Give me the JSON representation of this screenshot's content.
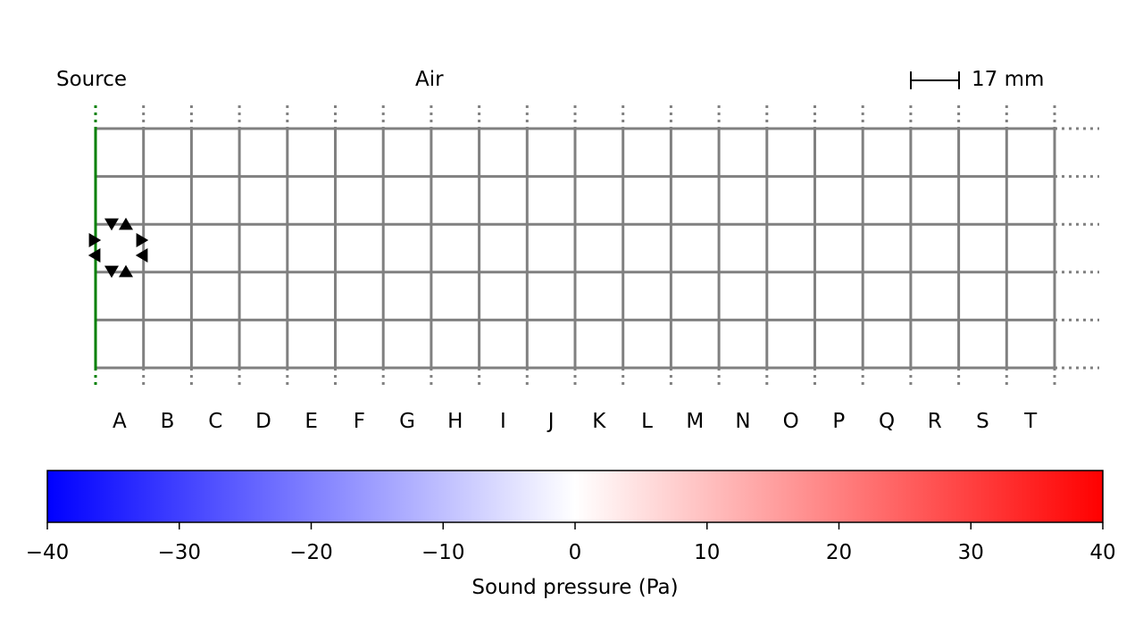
{
  "labels": {
    "source": "Source",
    "medium": "Air",
    "scale": "17 mm"
  },
  "grid": {
    "columns": [
      "A",
      "B",
      "C",
      "D",
      "E",
      "F",
      "G",
      "H",
      "I",
      "J",
      "K",
      "L",
      "M",
      "N",
      "O",
      "P",
      "Q",
      "R",
      "S",
      "T"
    ],
    "row_count": 5,
    "source_line_color": "#008000",
    "grid_color": "#808080"
  },
  "colorbar": {
    "label": "Sound pressure (Pa)",
    "min": -40,
    "max": 40,
    "ticks": [
      "−40",
      "−30",
      "−20",
      "−10",
      "0",
      "10",
      "20",
      "30",
      "40"
    ],
    "colors": [
      "#0000ff",
      "#ffffff",
      "#ff0000"
    ]
  },
  "markers": {
    "color": "#000000",
    "icon": "triangle-icon"
  }
}
